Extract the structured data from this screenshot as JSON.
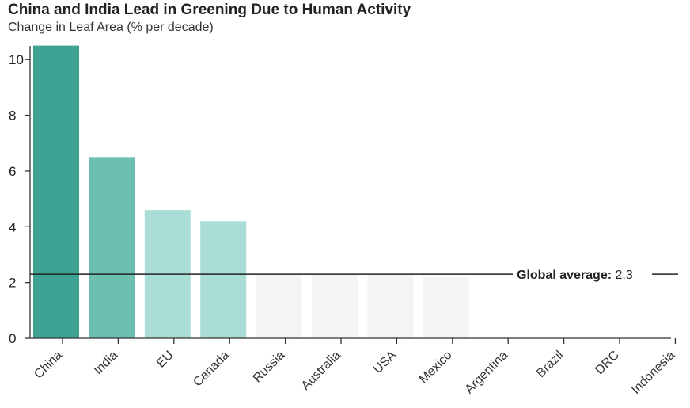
{
  "chart_data": {
    "type": "bar",
    "title": "China and India Lead in Greening Due to Human Activity",
    "subtitle": "Change in Leaf Area (% per decade)",
    "categories": [
      "China",
      "India",
      "EU",
      "Canada",
      "Russia",
      "Australia",
      "USA",
      "Mexico",
      "Argentina",
      "Brazil",
      "DRC",
      "Indonesia"
    ],
    "values": [
      10.5,
      6.5,
      4.6,
      4.2,
      2.3,
      2.3,
      2.3,
      2.2,
      0,
      0,
      0,
      0
    ],
    "colors": [
      "#3ea393",
      "#6cbfb1",
      "#aaddd6",
      "#aaddd6",
      "#f2f5f4",
      "#f2f5f4",
      "#f2f5f4",
      "#f2f5f4",
      "#ffffff",
      "#ffffff",
      "#ffffff",
      "#ffffff"
    ],
    "y_ticks": [
      0,
      2,
      4,
      6,
      8,
      10
    ],
    "ylim": [
      0,
      11
    ],
    "global_average": {
      "label": "Global average:",
      "value": 2.3,
      "value_label": "2.3"
    },
    "grid": false,
    "axis_color": "#333333"
  }
}
